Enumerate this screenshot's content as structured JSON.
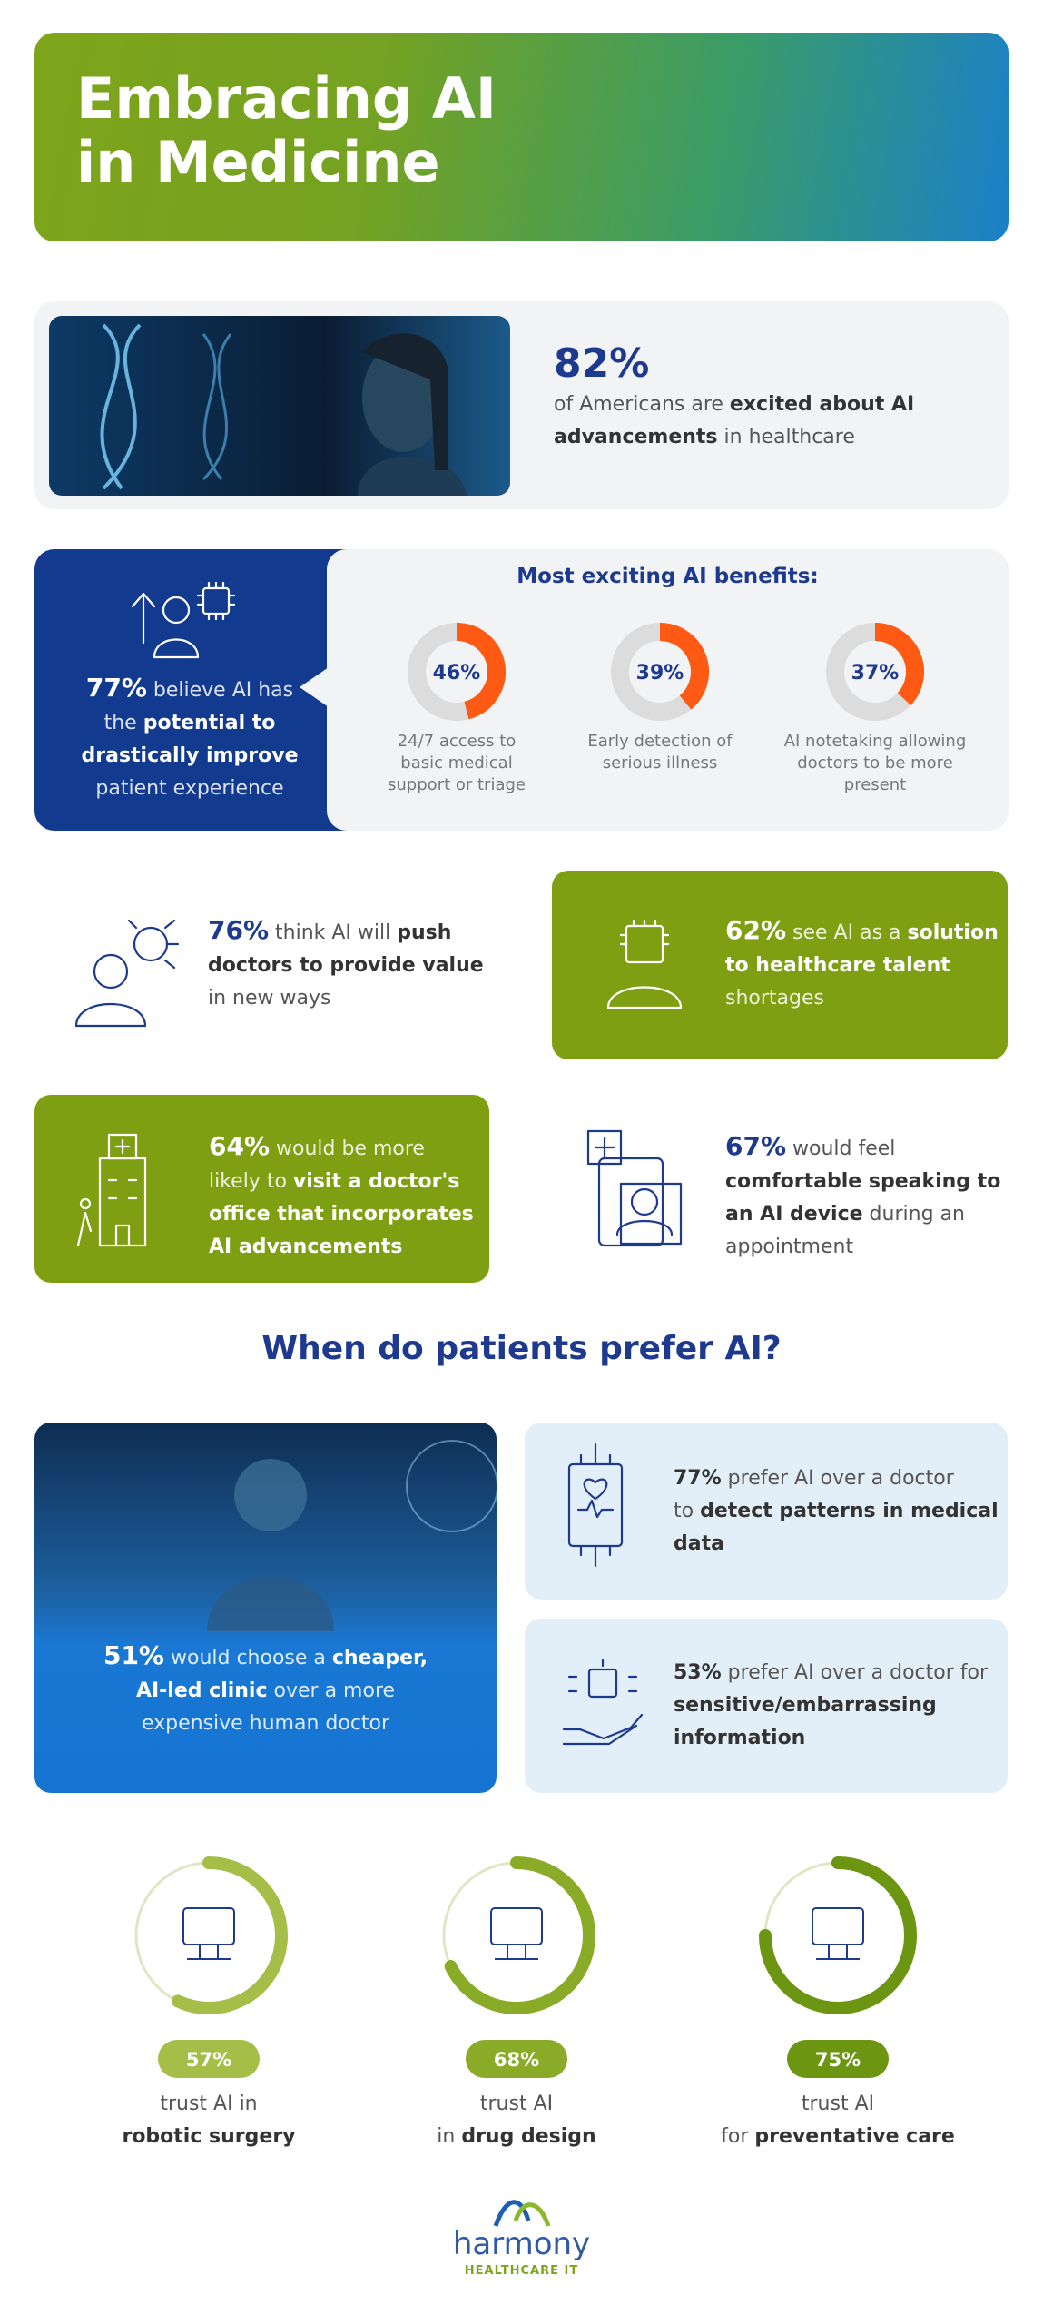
{
  "header": {
    "title_lines": [
      "Embracing AI",
      "in Medicine"
    ]
  },
  "hero_stat": {
    "value": "82%",
    "lines": [
      [
        {
          "text": "of Americans are "
        },
        {
          "text": "excited about AI",
          "weight": "bold"
        }
      ],
      [
        {
          "text": "advancements",
          "weight": "bold"
        },
        {
          "text": " in healthcare"
        }
      ]
    ]
  },
  "benefits": {
    "lines": [
      [
        {
          "text": "77%",
          "weight": "stat"
        },
        {
          "text": " believe AI has"
        }
      ],
      [
        {
          "text": "the "
        },
        {
          "text": "potential to",
          "weight": "bold"
        }
      ],
      [
        {
          "text": "drastically improve",
          "weight": "bold"
        }
      ],
      [
        {
          "text": "patient experience"
        }
      ]
    ],
    "heading": "Most exciting AI benefits:",
    "ring_color": "#ff5a14",
    "track_color": "#dcdcdc",
    "items": [
      {
        "value": 46,
        "label": "46%",
        "caption": [
          "24/7 access to",
          "basic medical",
          "support or triage"
        ]
      },
      {
        "value": 39,
        "label": "39%",
        "caption": [
          "Early detection of",
          "serious illness"
        ]
      },
      {
        "value": 37,
        "label": "37%",
        "caption": [
          "AI notetaking allowing",
          "doctors to be more",
          "present"
        ]
      }
    ]
  },
  "stats": [
    {
      "lines": [
        [
          {
            "text": "76%",
            "weight": "stat"
          },
          {
            "text": " think AI will "
          },
          {
            "text": "push",
            "weight": "bold"
          }
        ],
        [
          {
            "text": "doctors to provide value",
            "weight": "bold"
          }
        ],
        [
          {
            "text": "in new ways"
          }
        ]
      ]
    },
    {
      "lines": [
        [
          {
            "text": "62%",
            "weight": "stat"
          },
          {
            "text": " see AI as a "
          },
          {
            "text": "solution",
            "weight": "bold"
          }
        ],
        [
          {
            "text": "to healthcare talent",
            "weight": "bold"
          }
        ],
        [
          {
            "text": "shortages"
          }
        ]
      ]
    },
    {
      "lines": [
        [
          {
            "text": "64%",
            "weight": "stat"
          },
          {
            "text": " would be more"
          }
        ],
        [
          {
            "text": "likely to "
          },
          {
            "text": "visit a doctor's",
            "weight": "bold"
          }
        ],
        [
          {
            "text": "office that incorporates",
            "weight": "bold"
          }
        ],
        [
          {
            "text": "AI advancements",
            "weight": "bold"
          }
        ]
      ]
    },
    {
      "lines": [
        [
          {
            "text": "67%",
            "weight": "stat"
          },
          {
            "text": " would feel"
          }
        ],
        [
          {
            "text": "comfortable speaking to",
            "weight": "bold"
          }
        ],
        [
          {
            "text": "an AI device",
            "weight": "bold"
          },
          {
            "text": " during an"
          }
        ],
        [
          {
            "text": "appointment"
          }
        ]
      ]
    }
  ],
  "preference": {
    "heading": "When do patients prefer AI?",
    "highlight": {
      "lines": [
        [
          {
            "text": "51%",
            "weight": "stat"
          },
          {
            "text": " would choose a "
          },
          {
            "text": "cheaper,",
            "weight": "bold"
          }
        ],
        [
          {
            "text": "AI-led clinic",
            "weight": "bold"
          },
          {
            "text": " over a more"
          }
        ],
        [
          {
            "text": "expensive human doctor"
          }
        ]
      ]
    },
    "cards": [
      {
        "lines": [
          [
            {
              "text": "77%",
              "weight": "bold"
            },
            {
              "text": " prefer AI over a doctor"
            }
          ],
          [
            {
              "text": "to "
            },
            {
              "text": "detect patterns in medical",
              "weight": "bold"
            }
          ],
          [
            {
              "text": "data",
              "weight": "bold"
            }
          ]
        ]
      },
      {
        "lines": [
          [
            {
              "text": "53%",
              "weight": "bold"
            },
            {
              "text": " prefer AI over a doctor for"
            }
          ],
          [
            {
              "text": "sensitive/embarrassing",
              "weight": "bold"
            }
          ],
          [
            {
              "text": "information",
              "weight": "bold"
            }
          ]
        ]
      }
    ]
  },
  "trust": {
    "track_color": "#dfe6c4",
    "items": [
      {
        "value": 57,
        "label": "57%",
        "color": "#a4be48",
        "lines": [
          [
            {
              "text": "trust AI in"
            }
          ],
          [
            {
              "text": "robotic surgery",
              "weight": "bold"
            }
          ]
        ]
      },
      {
        "value": 68,
        "label": "68%",
        "color": "#8aab27",
        "lines": [
          [
            {
              "text": "trust AI"
            }
          ],
          [
            {
              "text": "in "
            },
            {
              "text": "drug design",
              "weight": "bold"
            }
          ]
        ]
      },
      {
        "value": 75,
        "label": "75%",
        "color": "#6c9512",
        "lines": [
          [
            {
              "text": "trust AI"
            }
          ],
          [
            {
              "text": "for "
            },
            {
              "text": "preventative care",
              "weight": "bold"
            }
          ]
        ]
      }
    ]
  },
  "logo": {
    "name": "harmony",
    "tagline": "HEALTHCARE IT"
  }
}
